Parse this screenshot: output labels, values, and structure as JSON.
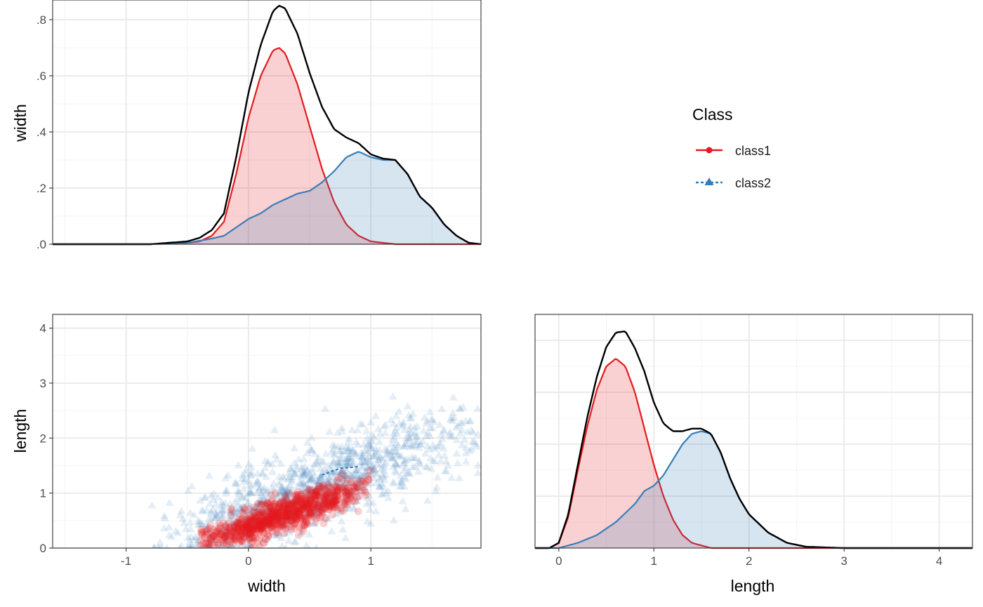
{
  "colors": {
    "class1": "#E41A1C",
    "class2": "#377EB8",
    "total": "#000000",
    "grid_major": "#EBEBEB",
    "grid_minor": "#F4F4F4",
    "panel_border": "#333333"
  },
  "legend": {
    "title": "Class",
    "items": [
      {
        "label": "class1",
        "color": "#E41A1C",
        "line": "solid",
        "shape": "circle-icon"
      },
      {
        "label": "class2",
        "color": "#377EB8",
        "line": "dashed",
        "shape": "triangle-icon"
      }
    ]
  },
  "chart_data": [
    {
      "id": "top",
      "type": "area",
      "title": "",
      "xlabel": "",
      "ylabel": "width",
      "xlim": [
        -1.6,
        1.9
      ],
      "ylim": [
        0,
        0.87
      ],
      "xticks": [],
      "yticks": [
        {
          "v": 0,
          "label": ".0"
        },
        {
          "v": 0.2,
          "label": ".2"
        },
        {
          "v": 0.4,
          "label": ".4"
        },
        {
          "v": 0.6,
          "label": ".6"
        },
        {
          "v": 0.8,
          "label": ".8"
        }
      ],
      "grid_major_x": [
        -1,
        0,
        1
      ],
      "grid_minor_x": [
        -1.5,
        -0.5,
        0.5,
        1.5
      ],
      "grid_major_y": [
        0,
        0.2,
        0.4,
        0.6,
        0.8
      ],
      "grid_minor_y": [
        0.1,
        0.3,
        0.5,
        0.7
      ],
      "series": [
        {
          "name": "class1",
          "x": [
            -1.6,
            -0.8,
            -0.5,
            -0.4,
            -0.3,
            -0.2,
            -0.1,
            0,
            0.1,
            0.2,
            0.25,
            0.3,
            0.4,
            0.5,
            0.6,
            0.7,
            0.8,
            0.9,
            1.0,
            1.2,
            1.9
          ],
          "y": [
            0,
            0,
            0.005,
            0.01,
            0.03,
            0.08,
            0.25,
            0.45,
            0.6,
            0.69,
            0.7,
            0.68,
            0.57,
            0.42,
            0.27,
            0.15,
            0.07,
            0.03,
            0.01,
            0,
            0
          ]
        },
        {
          "name": "class2",
          "x": [
            -1.6,
            -0.8,
            -0.5,
            -0.3,
            -0.2,
            -0.1,
            0,
            0.1,
            0.2,
            0.3,
            0.4,
            0.5,
            0.6,
            0.7,
            0.8,
            0.9,
            1.0,
            1.1,
            1.2,
            1.3,
            1.4,
            1.5,
            1.6,
            1.7,
            1.8,
            1.9
          ],
          "y": [
            0,
            0,
            0.005,
            0.02,
            0.03,
            0.06,
            0.09,
            0.11,
            0.14,
            0.16,
            0.18,
            0.19,
            0.22,
            0.26,
            0.31,
            0.33,
            0.31,
            0.3,
            0.3,
            0.25,
            0.17,
            0.13,
            0.07,
            0.03,
            0.005,
            0
          ]
        }
      ],
      "total_label": "total"
    },
    {
      "id": "scatter",
      "type": "scatter",
      "title": "",
      "xlabel": "width",
      "ylabel": "length",
      "xlim": [
        -1.6,
        1.9
      ],
      "ylim": [
        0,
        4.25
      ],
      "xticks": [
        {
          "v": -1,
          "label": "-1"
        },
        {
          "v": 0,
          "label": "0"
        },
        {
          "v": 1,
          "label": "1"
        }
      ],
      "yticks": [
        {
          "v": 0,
          "label": "0"
        },
        {
          "v": 1,
          "label": "1"
        },
        {
          "v": 2,
          "label": "2"
        },
        {
          "v": 3,
          "label": "3"
        },
        {
          "v": 4,
          "label": "4"
        }
      ],
      "grid_major_x": [
        -1,
        0,
        1
      ],
      "grid_minor_x": [
        -1.5,
        -0.5,
        0.5,
        1.5
      ],
      "grid_major_y": [
        0,
        1,
        2,
        3,
        4
      ],
      "grid_minor_y": [
        0.5,
        1.5,
        2.5,
        3.5
      ],
      "series": [
        {
          "name": "class1",
          "x_range": [
            -0.4,
            1.0
          ],
          "trend": [
            [
              -0.4,
              0.1
            ],
            [
              1.0,
              1.15
            ]
          ],
          "spread": 0.15,
          "n": 900
        },
        {
          "name": "class2",
          "x_range": [
            -0.8,
            1.9
          ],
          "trend": [
            [
              -0.8,
              0.0
            ],
            [
              1.9,
              2.2
            ]
          ],
          "spread": 0.4,
          "n": 1100
        },
        {
          "name": "class2-fit",
          "points": [
            [
              0.6,
              1.33
            ],
            [
              0.75,
              1.45
            ],
            [
              0.9,
              1.48
            ]
          ]
        }
      ]
    },
    {
      "id": "right",
      "type": "area",
      "title": "",
      "xlabel": "length",
      "ylabel": "",
      "xlim": [
        -0.25,
        4.35
      ],
      "ylim": [
        0,
        0.9
      ],
      "xticks": [
        {
          "v": 0,
          "label": "0"
        },
        {
          "v": 1,
          "label": "1"
        },
        {
          "v": 2,
          "label": "2"
        },
        {
          "v": 3,
          "label": "3"
        },
        {
          "v": 4,
          "label": "4"
        }
      ],
      "yticks": [],
      "grid_major_x": [
        0,
        1,
        2,
        3,
        4
      ],
      "grid_minor_x": [
        0.5,
        1.5,
        2.5,
        3.5
      ],
      "grid_major_y": [
        0.2,
        0.4,
        0.6,
        0.8
      ],
      "grid_minor_y": [
        0.1,
        0.3,
        0.5,
        0.7
      ],
      "series": [
        {
          "name": "class1",
          "x": [
            -0.1,
            0,
            0.1,
            0.2,
            0.3,
            0.4,
            0.5,
            0.6,
            0.7,
            0.8,
            0.9,
            1.0,
            1.1,
            1.2,
            1.3,
            1.4,
            1.6,
            4.3
          ],
          "y": [
            0,
            0.02,
            0.12,
            0.3,
            0.47,
            0.61,
            0.7,
            0.73,
            0.7,
            0.6,
            0.46,
            0.32,
            0.2,
            0.11,
            0.05,
            0.02,
            0,
            0
          ]
        },
        {
          "name": "class2",
          "x": [
            -0.1,
            0,
            0.2,
            0.4,
            0.6,
            0.8,
            0.9,
            1.0,
            1.1,
            1.2,
            1.3,
            1.4,
            1.5,
            1.6,
            1.7,
            1.8,
            1.9,
            2.0,
            2.2,
            2.4,
            2.6,
            3.0,
            4.3
          ],
          "y": [
            0,
            0,
            0.02,
            0.05,
            0.1,
            0.17,
            0.22,
            0.24,
            0.28,
            0.34,
            0.4,
            0.44,
            0.45,
            0.44,
            0.37,
            0.27,
            0.19,
            0.13,
            0.06,
            0.02,
            0.005,
            0,
            0
          ]
        }
      ],
      "total_label": "total"
    }
  ]
}
